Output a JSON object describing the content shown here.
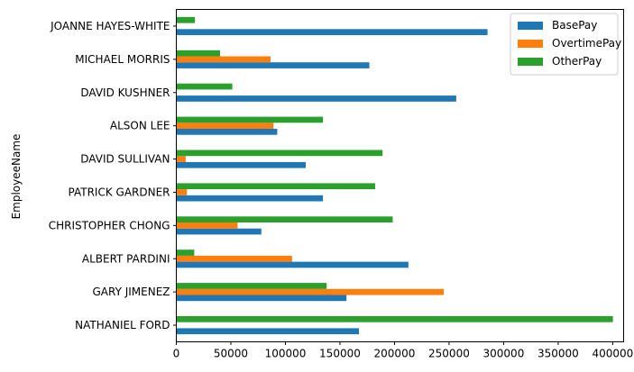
{
  "chart_data": {
    "type": "bar",
    "orientation": "horizontal",
    "title": "",
    "xlabel": "",
    "ylabel": "EmployeeName",
    "xlim": [
      0,
      410000
    ],
    "xticks": [
      0,
      50000,
      100000,
      150000,
      200000,
      250000,
      300000,
      350000,
      400000
    ],
    "grid": false,
    "legend_position": "top-right",
    "categories": [
      "NATHANIEL FORD",
      "GARY JIMENEZ",
      "ALBERT PARDINI",
      "CHRISTOPHER CHONG",
      "PATRICK GARDNER",
      "DAVID SULLIVAN",
      "ALSON LEE",
      "DAVID KUSHNER",
      "MICHAEL MORRIS",
      "JOANNE HAYES-WHITE"
    ],
    "series": [
      {
        "name": "BasePay",
        "color": "#1f77b4",
        "values": [
          167411,
          155966,
          212739,
          77916,
          134401,
          118602,
          92492,
          256577,
          176933,
          285262
        ]
      },
      {
        "name": "OvertimePay",
        "color": "#ff7f0e",
        "values": [
          0,
          245132,
          106088,
          56121,
          9737,
          8601,
          89063,
          0,
          86363,
          0
        ]
      },
      {
        "name": "OtherPay",
        "color": "#2ca02c",
        "values": [
          400184,
          137811,
          16452,
          198307,
          182235,
          189083,
          134426,
          51322,
          40132,
          17115
        ]
      }
    ]
  }
}
